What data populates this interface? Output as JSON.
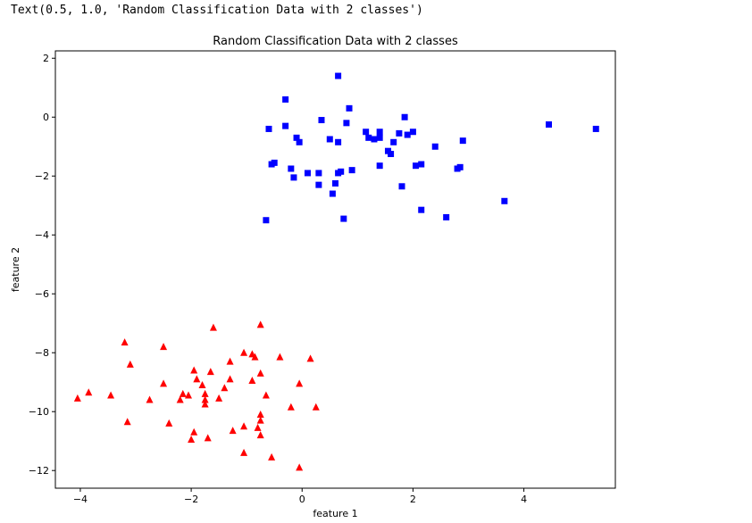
{
  "output_text": "Text(0.5, 1.0, 'Random Classification Data with 2 classes')",
  "chart_data": {
    "type": "scatter",
    "title": "Random Classification Data with 2 classes",
    "xlabel": "feature 1",
    "ylabel": "feature 2",
    "xlim": [
      -4.45,
      5.65
    ],
    "ylim": [
      -12.6,
      2.25
    ],
    "xticks": [
      -4,
      -2,
      0,
      2,
      4
    ],
    "yticks": [
      2,
      0,
      -2,
      -4,
      -6,
      -8,
      -10,
      -12
    ],
    "grid": false,
    "series": [
      {
        "marker": "square",
        "color": "#0000ff",
        "points": [
          [
            0.65,
            1.4
          ],
          [
            -0.3,
            0.6
          ],
          [
            0.85,
            0.3
          ],
          [
            0.35,
            -0.1
          ],
          [
            0.8,
            -0.2
          ],
          [
            1.85,
            0.0
          ],
          [
            4.45,
            -0.25
          ],
          [
            5.3,
            -0.4
          ],
          [
            -0.6,
            -0.4
          ],
          [
            -0.3,
            -0.3
          ],
          [
            -0.1,
            -0.7
          ],
          [
            -0.05,
            -0.85
          ],
          [
            0.5,
            -0.75
          ],
          [
            0.65,
            -0.85
          ],
          [
            1.15,
            -0.5
          ],
          [
            1.2,
            -0.7
          ],
          [
            1.3,
            -0.75
          ],
          [
            1.4,
            -0.5
          ],
          [
            1.4,
            -0.7
          ],
          [
            1.65,
            -0.85
          ],
          [
            1.75,
            -0.55
          ],
          [
            1.9,
            -0.6
          ],
          [
            2.0,
            -0.5
          ],
          [
            2.4,
            -1.0
          ],
          [
            2.9,
            -0.8
          ],
          [
            1.55,
            -1.15
          ],
          [
            1.6,
            -1.25
          ],
          [
            -0.55,
            -1.6
          ],
          [
            -0.5,
            -1.55
          ],
          [
            -0.2,
            -1.75
          ],
          [
            -0.15,
            -2.05
          ],
          [
            0.1,
            -1.9
          ],
          [
            0.3,
            -1.9
          ],
          [
            0.3,
            -2.3
          ],
          [
            0.55,
            -2.6
          ],
          [
            0.6,
            -2.25
          ],
          [
            0.65,
            -1.9
          ],
          [
            0.7,
            -1.85
          ],
          [
            0.9,
            -1.8
          ],
          [
            1.4,
            -1.65
          ],
          [
            2.05,
            -1.65
          ],
          [
            2.15,
            -1.6
          ],
          [
            2.8,
            -1.75
          ],
          [
            2.85,
            -1.7
          ],
          [
            1.8,
            -2.35
          ],
          [
            2.15,
            -3.15
          ],
          [
            2.6,
            -3.4
          ],
          [
            3.65,
            -2.85
          ],
          [
            -0.65,
            -3.5
          ],
          [
            0.75,
            -3.45
          ]
        ]
      },
      {
        "marker": "triangle",
        "color": "#ff0000",
        "points": [
          [
            -0.75,
            -7.05
          ],
          [
            -1.6,
            -7.15
          ],
          [
            -3.2,
            -7.65
          ],
          [
            -2.5,
            -7.8
          ],
          [
            -3.1,
            -8.4
          ],
          [
            -1.05,
            -8.0
          ],
          [
            -0.9,
            -8.05
          ],
          [
            -0.85,
            -8.15
          ],
          [
            -0.4,
            -8.15
          ],
          [
            0.15,
            -8.2
          ],
          [
            -1.3,
            -8.3
          ],
          [
            -1.65,
            -8.65
          ],
          [
            -1.95,
            -8.6
          ],
          [
            -0.75,
            -8.7
          ],
          [
            -1.9,
            -8.9
          ],
          [
            -1.3,
            -8.9
          ],
          [
            -0.9,
            -8.95
          ],
          [
            -1.8,
            -9.1
          ],
          [
            -1.4,
            -9.2
          ],
          [
            -0.05,
            -9.05
          ],
          [
            -2.5,
            -9.05
          ],
          [
            -2.15,
            -9.4
          ],
          [
            -2.05,
            -9.45
          ],
          [
            -2.2,
            -9.6
          ],
          [
            -1.75,
            -9.4
          ],
          [
            -1.5,
            -9.55
          ],
          [
            -0.65,
            -9.45
          ],
          [
            -1.75,
            -9.6
          ],
          [
            -1.75,
            -9.75
          ],
          [
            -2.75,
            -9.6
          ],
          [
            -3.45,
            -9.45
          ],
          [
            -3.85,
            -9.35
          ],
          [
            -4.05,
            -9.55
          ],
          [
            -0.75,
            -10.1
          ],
          [
            -0.75,
            -10.3
          ],
          [
            -0.2,
            -9.85
          ],
          [
            0.25,
            -9.85
          ],
          [
            -3.15,
            -10.35
          ],
          [
            -2.4,
            -10.4
          ],
          [
            -1.05,
            -10.5
          ],
          [
            -1.25,
            -10.65
          ],
          [
            -0.8,
            -10.55
          ],
          [
            -1.95,
            -10.7
          ],
          [
            -2.0,
            -10.95
          ],
          [
            -1.7,
            -10.9
          ],
          [
            -0.75,
            -10.8
          ],
          [
            -1.05,
            -11.4
          ],
          [
            -0.55,
            -11.55
          ],
          [
            -0.05,
            -11.9
          ]
        ]
      }
    ]
  }
}
